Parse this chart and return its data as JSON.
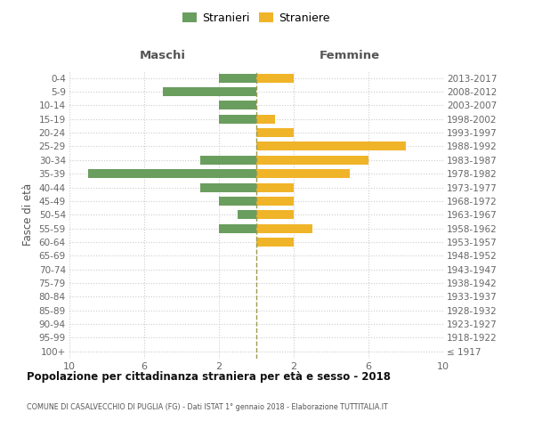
{
  "age_groups": [
    "100+",
    "95-99",
    "90-94",
    "85-89",
    "80-84",
    "75-79",
    "70-74",
    "65-69",
    "60-64",
    "55-59",
    "50-54",
    "45-49",
    "40-44",
    "35-39",
    "30-34",
    "25-29",
    "20-24",
    "15-19",
    "10-14",
    "5-9",
    "0-4"
  ],
  "birth_years": [
    "≤ 1917",
    "1918-1922",
    "1923-1927",
    "1928-1932",
    "1933-1937",
    "1938-1942",
    "1943-1947",
    "1948-1952",
    "1953-1957",
    "1958-1962",
    "1963-1967",
    "1968-1972",
    "1973-1977",
    "1978-1982",
    "1983-1987",
    "1988-1992",
    "1993-1997",
    "1998-2002",
    "2003-2007",
    "2008-2012",
    "2013-2017"
  ],
  "males": [
    0,
    0,
    0,
    0,
    0,
    0,
    0,
    0,
    0,
    2,
    1,
    2,
    3,
    9,
    3,
    0,
    0,
    2,
    2,
    5,
    2
  ],
  "females": [
    0,
    0,
    0,
    0,
    0,
    0,
    0,
    0,
    2,
    3,
    2,
    2,
    2,
    5,
    6,
    8,
    2,
    1,
    0,
    0,
    2
  ],
  "male_color": "#6a9e5e",
  "female_color": "#f0b429",
  "center_line_color": "#9a9a50",
  "grid_color": "#cccccc",
  "background_color": "#ffffff",
  "xlim": 10,
  "title": "Popolazione per cittadinanza straniera per età e sesso - 2018",
  "subtitle": "COMUNE DI CASALVECCHIO DI PUGLIA (FG) - Dati ISTAT 1° gennaio 2018 - Elaborazione TUTTITALIA.IT",
  "ylabel_left": "Fasce di età",
  "header_left": "Maschi",
  "header_right": "Femmine",
  "legend_male": "Stranieri",
  "legend_female": "Straniere"
}
